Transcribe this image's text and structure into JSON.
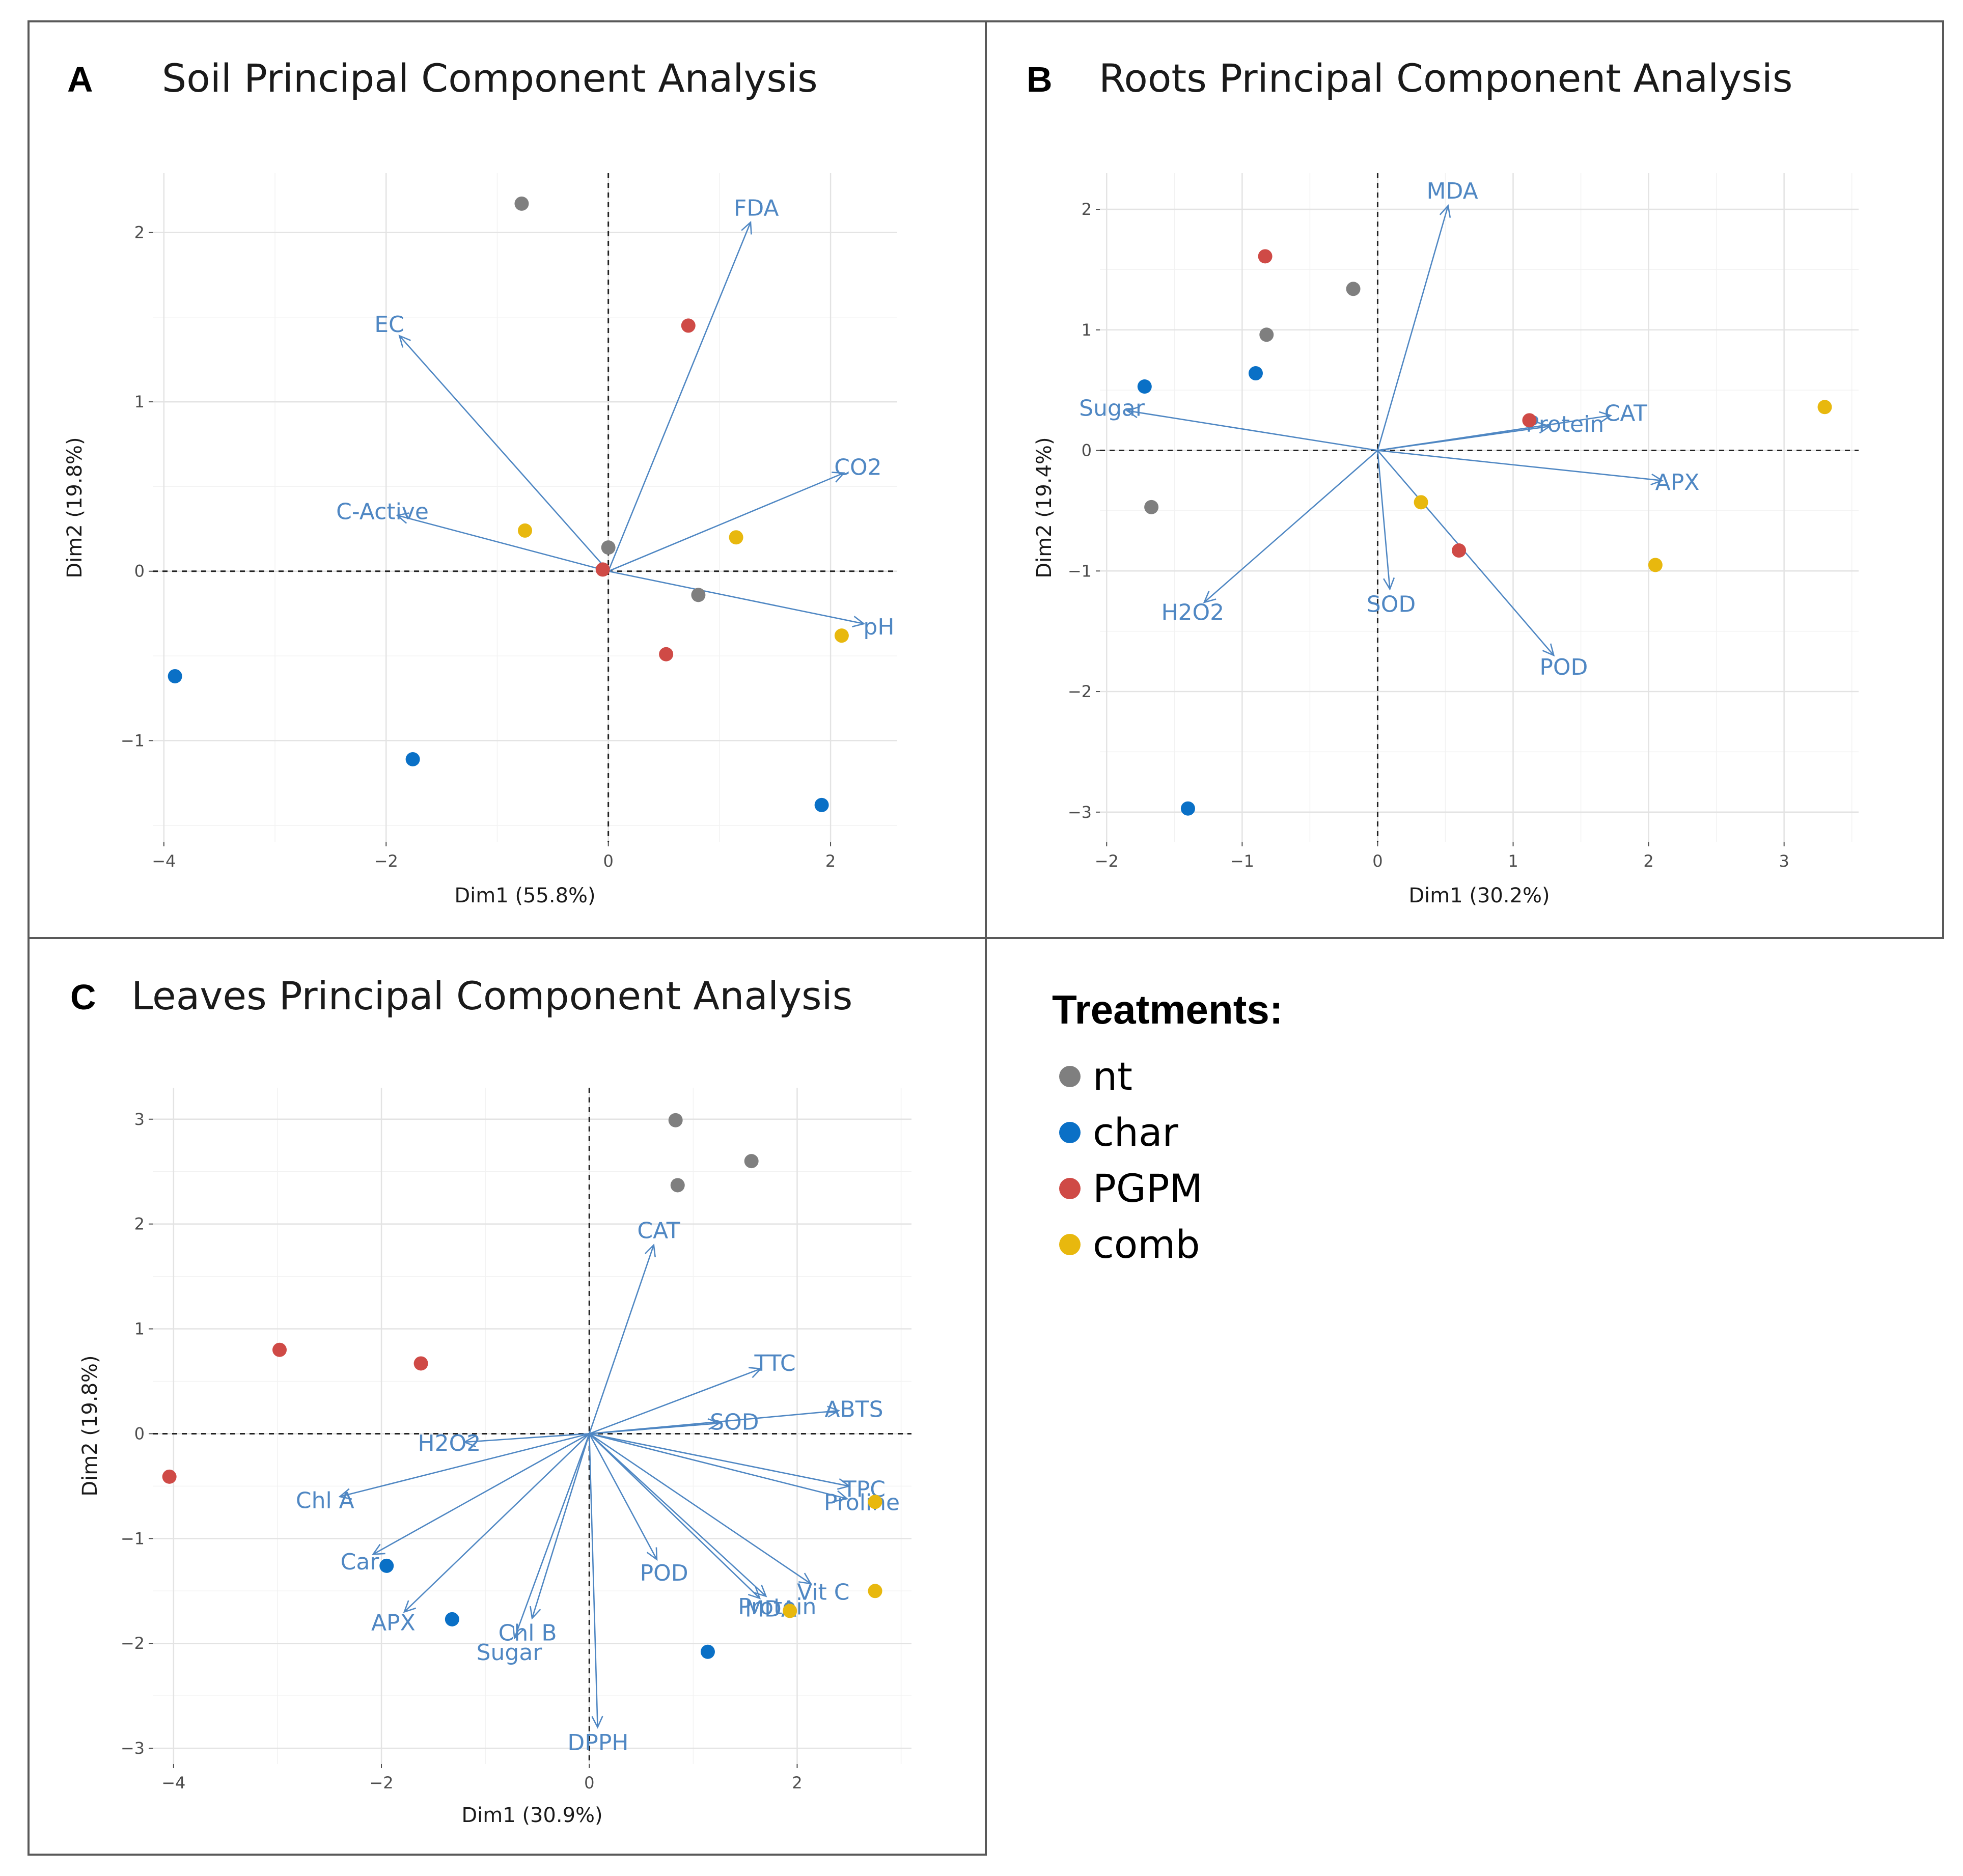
{
  "colors": {
    "nt": "#7f7f7f",
    "char": "#0a70c6",
    "PGPM": "#cf4a46",
    "comb": "#e8b80e",
    "variable": "#4f87c3"
  },
  "legend": {
    "title": "Treatments:",
    "items": [
      {
        "key": "nt",
        "label": "nt"
      },
      {
        "key": "char",
        "label": "char"
      },
      {
        "key": "PGPM",
        "label": "PGPM"
      },
      {
        "key": "comb",
        "label": "comb"
      }
    ]
  },
  "chart_data": [
    {
      "type": "scatter",
      "letter": "A",
      "title": "Soil Principal Component Analysis",
      "xlabel": "Dim1 (55.8%)",
      "ylabel": "Dim2 (19.8%)",
      "xlim": [
        -4.1,
        2.6
      ],
      "ylim": [
        -1.6,
        2.35
      ],
      "xticks": [
        -4,
        -2,
        0,
        2
      ],
      "yticks": [
        -1,
        0,
        1,
        2
      ],
      "xtick_labels": [
        "−4",
        "−2",
        "0",
        "2"
      ],
      "ytick_labels": [
        "−1",
        "0",
        "1",
        "2"
      ],
      "grid": true,
      "points": [
        {
          "group": "nt",
          "x": -0.78,
          "y": 2.17
        },
        {
          "group": "nt",
          "x": 0.0,
          "y": 0.14
        },
        {
          "group": "nt",
          "x": 0.81,
          "y": -0.14
        },
        {
          "group": "char",
          "x": -3.9,
          "y": -0.62
        },
        {
          "group": "char",
          "x": -1.76,
          "y": -1.11
        },
        {
          "group": "char",
          "x": 1.92,
          "y": -1.38
        },
        {
          "group": "PGPM",
          "x": 0.72,
          "y": 1.45
        },
        {
          "group": "PGPM",
          "x": -0.05,
          "y": 0.01
        },
        {
          "group": "PGPM",
          "x": 0.52,
          "y": -0.49
        },
        {
          "group": "comb",
          "x": -0.75,
          "y": 0.24
        },
        {
          "group": "comb",
          "x": 1.15,
          "y": 0.2
        },
        {
          "group": "comb",
          "x": 2.1,
          "y": -0.38
        }
      ],
      "loadings": [
        {
          "label": "FDA",
          "x": 1.28,
          "y": 2.06
        },
        {
          "label": "EC",
          "x": -1.88,
          "y": 1.39
        },
        {
          "label": "CO2",
          "x": 2.12,
          "y": 0.58
        },
        {
          "label": "C-Active",
          "x": -1.9,
          "y": 0.33
        },
        {
          "label": "pH",
          "x": 2.3,
          "y": -0.31
        }
      ]
    },
    {
      "type": "scatter",
      "letter": "B",
      "title": "Roots Principal Component Analysis",
      "xlabel": "Dim1 (30.2%)",
      "ylabel": "Dim2 (19.4%)",
      "xlim": [
        -2.05,
        3.55
      ],
      "ylim": [
        -3.25,
        2.3
      ],
      "xticks": [
        -2,
        -1,
        0,
        1,
        2,
        3
      ],
      "yticks": [
        -3,
        -2,
        -1,
        0,
        1,
        2
      ],
      "xtick_labels": [
        "−2",
        "−1",
        "0",
        "1",
        "2",
        "3"
      ],
      "ytick_labels": [
        "−3",
        "−2",
        "−1",
        "0",
        "1",
        "2"
      ],
      "grid": true,
      "points": [
        {
          "group": "nt",
          "x": -0.18,
          "y": 1.34
        },
        {
          "group": "nt",
          "x": -0.82,
          "y": 0.96
        },
        {
          "group": "nt",
          "x": -1.67,
          "y": -0.47
        },
        {
          "group": "char",
          "x": -1.72,
          "y": 0.53
        },
        {
          "group": "char",
          "x": -0.9,
          "y": 0.64
        },
        {
          "group": "char",
          "x": -1.4,
          "y": -2.97
        },
        {
          "group": "PGPM",
          "x": -0.83,
          "y": 1.61
        },
        {
          "group": "PGPM",
          "x": 1.12,
          "y": 0.25
        },
        {
          "group": "PGPM",
          "x": 0.6,
          "y": -0.83
        },
        {
          "group": "comb",
          "x": 3.3,
          "y": 0.36
        },
        {
          "group": "comb",
          "x": 0.32,
          "y": -0.43
        },
        {
          "group": "comb",
          "x": 2.05,
          "y": -0.95
        }
      ],
      "loadings": [
        {
          "label": "MDA",
          "x": 0.52,
          "y": 2.03
        },
        {
          "label": "Sugar",
          "x": -1.85,
          "y": 0.33
        },
        {
          "label": "Protein",
          "x": 1.27,
          "y": 0.2
        },
        {
          "label": "CAT",
          "x": 1.72,
          "y": 0.29
        },
        {
          "label": "APX",
          "x": 2.1,
          "y": -0.25
        },
        {
          "label": "SOD",
          "x": 0.09,
          "y": -1.15
        },
        {
          "label": "H2O2",
          "x": -1.28,
          "y": -1.26
        },
        {
          "label": "POD",
          "x": 1.3,
          "y": -1.7
        }
      ]
    },
    {
      "type": "scatter",
      "letter": "C",
      "title": "Leaves Principal Component Analysis",
      "xlabel": "Dim1 (30.9%)",
      "ylabel": "Dim2 (19.8%)",
      "xlim": [
        -4.2,
        3.1
      ],
      "ylim": [
        -3.15,
        3.3
      ],
      "xticks": [
        -4,
        -2,
        0,
        2
      ],
      "yticks": [
        -3,
        -2,
        -1,
        0,
        1,
        2,
        3
      ],
      "xtick_labels": [
        "−4",
        "−2",
        "0",
        "2"
      ],
      "ytick_labels": [
        "−3",
        "−2",
        "−1",
        "0",
        "1",
        "2",
        "3"
      ],
      "grid": true,
      "points": [
        {
          "group": "nt",
          "x": 0.83,
          "y": 2.99
        },
        {
          "group": "nt",
          "x": 1.56,
          "y": 2.6
        },
        {
          "group": "nt",
          "x": 0.85,
          "y": 2.37
        },
        {
          "group": "char",
          "x": -1.95,
          "y": -1.26
        },
        {
          "group": "char",
          "x": -1.32,
          "y": -1.77
        },
        {
          "group": "char",
          "x": 1.14,
          "y": -2.08
        },
        {
          "group": "PGPM",
          "x": -2.98,
          "y": 0.8
        },
        {
          "group": "PGPM",
          "x": -1.62,
          "y": 0.67
        },
        {
          "group": "PGPM",
          "x": -4.04,
          "y": -0.41
        },
        {
          "group": "comb",
          "x": 2.75,
          "y": -0.65
        },
        {
          "group": "comb",
          "x": 2.75,
          "y": -1.5
        },
        {
          "group": "comb",
          "x": 1.93,
          "y": -1.69
        }
      ],
      "loadings": [
        {
          "label": "CAT",
          "x": 0.62,
          "y": 1.8
        },
        {
          "label": "TTC",
          "x": 1.65,
          "y": 0.62
        },
        {
          "label": "SOD",
          "x": 1.25,
          "y": 0.1
        },
        {
          "label": "ABTS",
          "x": 2.4,
          "y": 0.22
        },
        {
          "label": "H2O2",
          "x": -1.2,
          "y": -0.08
        },
        {
          "label": "Chl A",
          "x": -2.4,
          "y": -0.6
        },
        {
          "label": "TPC",
          "x": 2.5,
          "y": -0.5
        },
        {
          "label": "Proline",
          "x": 2.48,
          "y": -0.62
        },
        {
          "label": "Car",
          "x": -2.08,
          "y": -1.15
        },
        {
          "label": "POD",
          "x": 0.65,
          "y": -1.2
        },
        {
          "label": "MDA",
          "x": 1.64,
          "y": -1.57
        },
        {
          "label": "Vit C",
          "x": 2.13,
          "y": -1.43
        },
        {
          "label": "Protein",
          "x": 1.7,
          "y": -1.55
        },
        {
          "label": "APX",
          "x": -1.78,
          "y": -1.7
        },
        {
          "label": "Chl B",
          "x": -0.55,
          "y": -1.76
        },
        {
          "label": "Sugar",
          "x": -0.72,
          "y": -1.95
        },
        {
          "label": "DPPH",
          "x": 0.08,
          "y": -2.8
        }
      ]
    }
  ]
}
